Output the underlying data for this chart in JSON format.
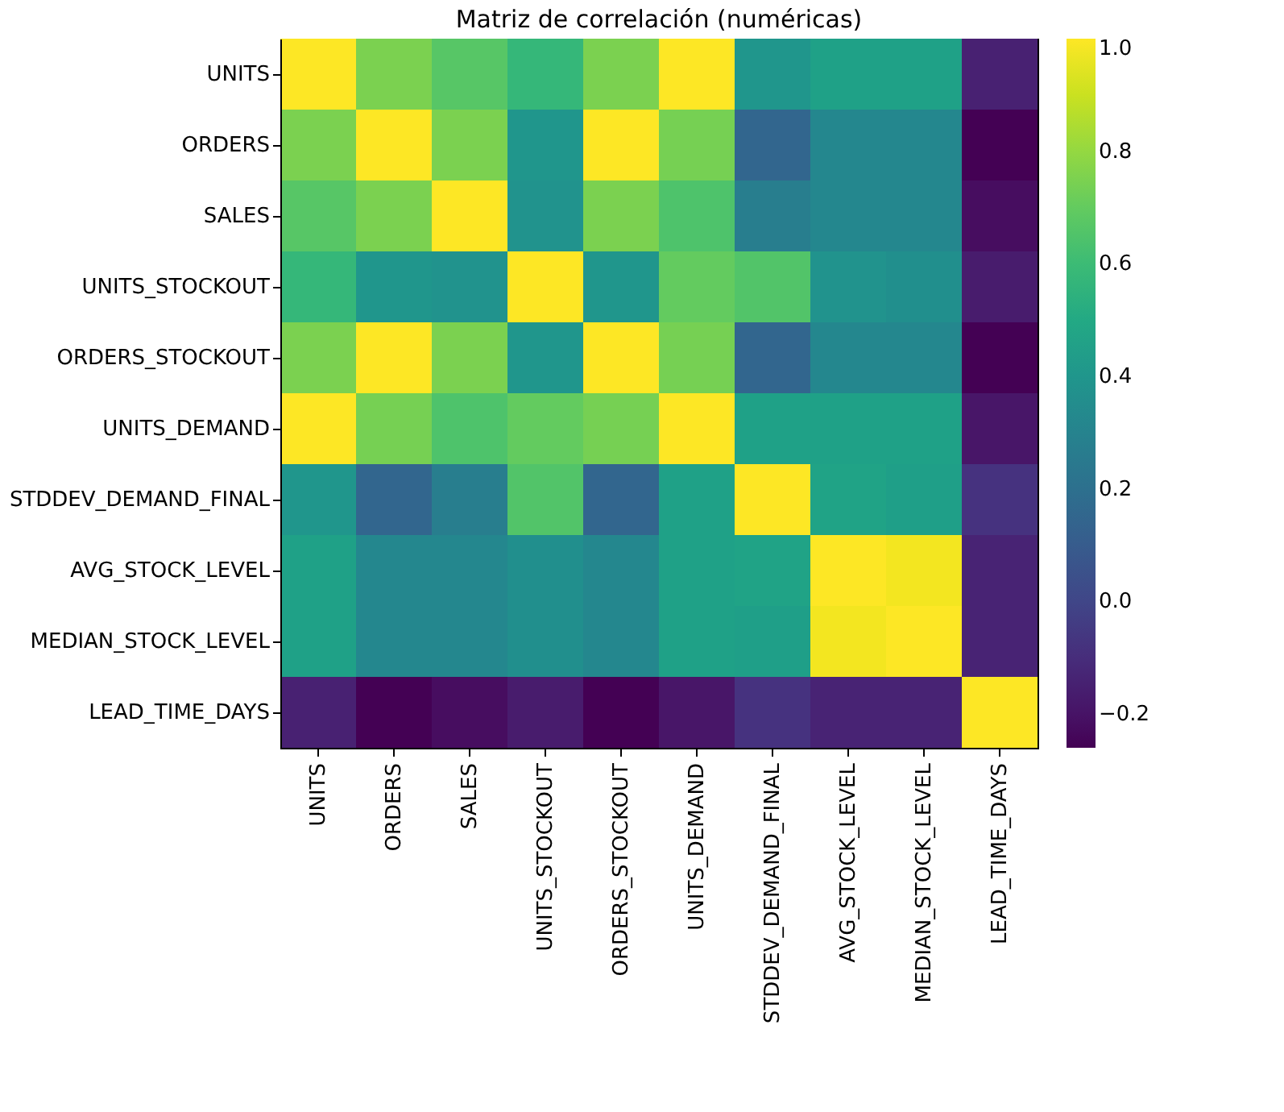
{
  "chart_data": {
    "type": "heatmap",
    "title": "Matriz de correlación (numéricas)",
    "categories": [
      "UNITS",
      "ORDERS",
      "SALES",
      "UNITS_STOCKOUT",
      "ORDERS_STOCKOUT",
      "UNITS_DEMAND",
      "STDDEV_DEMAND_FINAL",
      "AVG_STOCK_LEVEL",
      "MEDIAN_STOCK_LEVEL",
      "LEAD_TIME_DAYS"
    ],
    "y_categories": [
      "UNITS",
      "ORDERS",
      "SALES",
      "UNITS_STOCKOUT",
      "ORDERS_STOCKOUT",
      "UNITS_DEMAND",
      "STDDEV_DEMAND_FINAL",
      "AVG_STOCK_LEVEL",
      "MEDIAN_STOCK_LEVEL",
      "LEAD_TIME_DAYS"
    ],
    "cells": [
      [
        1,
        0.75,
        0.67,
        0.58,
        0.75,
        1,
        0.4,
        0.46,
        0.46,
        -0.15
      ],
      [
        0.75,
        1,
        0.75,
        0.4,
        1,
        0.74,
        0.15,
        0.32,
        0.32,
        -0.26
      ],
      [
        0.67,
        0.75,
        1,
        0.38,
        0.75,
        0.65,
        0.27,
        0.32,
        0.32,
        -0.22
      ],
      [
        0.58,
        0.4,
        0.38,
        1,
        0.4,
        0.7,
        0.66,
        0.38,
        0.36,
        -0.17
      ],
      [
        0.75,
        1,
        0.75,
        0.4,
        1,
        0.74,
        0.15,
        0.32,
        0.32,
        -0.26
      ],
      [
        1,
        0.74,
        0.65,
        0.7,
        0.74,
        1,
        0.46,
        0.46,
        0.46,
        -0.19
      ],
      [
        0.4,
        0.15,
        0.27,
        0.66,
        0.15,
        0.46,
        1,
        0.47,
        0.45,
        -0.08
      ],
      [
        0.46,
        0.32,
        0.32,
        0.36,
        0.32,
        0.46,
        0.47,
        1,
        0.98,
        -0.14
      ],
      [
        0.46,
        0.32,
        0.32,
        0.36,
        0.32,
        0.46,
        0.45,
        0.98,
        1,
        -0.14
      ],
      [
        -0.15,
        -0.26,
        -0.22,
        -0.17,
        -0.26,
        -0.19,
        -0.08,
        -0.14,
        -0.14,
        1
      ]
    ],
    "clim": [
      -0.26,
      1
    ],
    "cticks": [
      {
        "value": -0.2,
        "label": "−0.2"
      },
      {
        "value": 0,
        "label": "0.0"
      },
      {
        "value": 0.2,
        "label": "0.2"
      },
      {
        "value": 0.4,
        "label": "0.4"
      },
      {
        "value": 0.6,
        "label": "0.6"
      },
      {
        "value": 0.8,
        "label": "0.8"
      },
      {
        "value": 1,
        "label": "1.0"
      }
    ],
    "grid": false
  }
}
